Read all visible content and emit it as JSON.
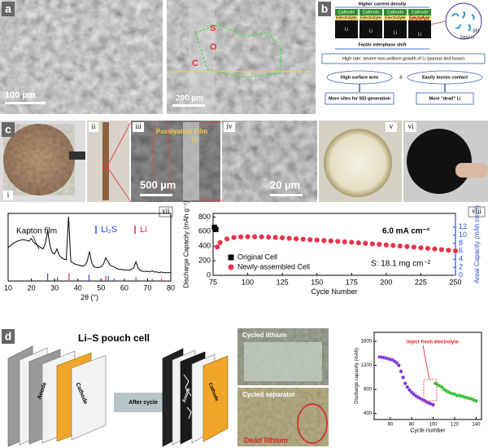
{
  "panels": {
    "a": {
      "label": "a",
      "scale_bars": [
        "100 µm",
        "200 µm"
      ],
      "markers": [
        "S",
        "O",
        "C"
      ]
    },
    "b": {
      "label": "b",
      "title": "Higher current density",
      "layers": [
        "Cathode",
        "Electrolyte",
        "Li"
      ],
      "shift": "Faster interphase shift",
      "result": "High rate: severe non-uniform growth of Li (porous and loose)",
      "causes": [
        "High surface area",
        "&",
        "Easily looses contact"
      ],
      "effects": [
        "More sites for SEI generation",
        "More \"dead\" Li"
      ],
      "inset": [
        "SEI",
        "Dead Li"
      ]
    },
    "c": {
      "label": "c",
      "subpanels": [
        "i",
        "ii",
        "iii",
        "iv",
        "v",
        "vi",
        "vii",
        "viii"
      ],
      "film": "Passivation Film",
      "li": "Li",
      "scale_bars": [
        "500 µm",
        "20 µm"
      ]
    },
    "d": {
      "label": "d",
      "title": "Li–S pouch cell",
      "anode": "Anode",
      "cathode": "Cathode",
      "arrow": "After cycle",
      "photos": [
        "Cycled lithium",
        "Cycled separator"
      ],
      "dead": "Dead lithium"
    }
  },
  "chart_data": [
    {
      "type": "line",
      "color": "#000000",
      "x": [
        10,
        11,
        12,
        13,
        14,
        15,
        16,
        17,
        18,
        19,
        20,
        21,
        22,
        23,
        24,
        25,
        26,
        27,
        28,
        29,
        30,
        31,
        32,
        33,
        34,
        35,
        36,
        37,
        38,
        39,
        40,
        41,
        42,
        43,
        44,
        45,
        46,
        47,
        48,
        49,
        50,
        51,
        52,
        53,
        54,
        55,
        56,
        57,
        58,
        59,
        60,
        61,
        62,
        63,
        64,
        65,
        66,
        67,
        68,
        69,
        70,
        71,
        72,
        73,
        74,
        75,
        76,
        77,
        78,
        79,
        80
      ],
      "values": [
        52,
        55,
        58,
        60,
        62,
        63,
        64,
        64,
        63,
        62,
        66,
        60,
        57,
        55,
        52,
        50,
        58,
        78,
        55,
        44,
        42,
        50,
        40,
        36,
        34,
        33,
        100,
        30,
        28,
        26,
        25,
        24,
        23,
        24,
        30,
        46,
        28,
        22,
        21,
        21,
        22,
        26,
        36,
        30,
        24,
        23,
        21,
        19,
        18,
        18,
        17,
        17,
        17,
        18,
        20,
        30,
        20,
        16,
        15,
        15,
        15,
        14,
        16,
        14,
        14,
        13,
        14,
        13,
        13,
        13,
        13
      ],
      "xlim": [
        10,
        80
      ],
      "xticks": [
        10,
        20,
        30,
        40,
        50,
        60,
        70,
        80
      ],
      "ylim": [
        0,
        105
      ],
      "xlabel": "2θ (°)",
      "annotations": [
        "Kapton film"
      ],
      "legend": "upper right",
      "references": [
        {
          "name": "Li₂S",
          "color": "#2a4fd6",
          "x": [
            27,
            31.2,
            44.8,
            53.1,
            55.6,
            65,
            72
          ],
          "values": [
            12,
            6,
            10,
            8,
            4,
            3,
            3
          ]
        },
        {
          "name": "Li",
          "color": "#e0284a",
          "x": [
            36.2,
            52,
            65,
            76
          ],
          "values": [
            12,
            8,
            6,
            4
          ]
        }
      ]
    },
    {
      "type": "scatter",
      "series": [
        {
          "name": "Original Cell",
          "color": "#000000",
          "marker": "square",
          "x": [
            76,
            77
          ],
          "values": [
            660,
            630
          ]
        },
        {
          "name": "Newly-assembled Cell",
          "color": "#e8334a",
          "marker": "circle",
          "x": [
            78,
            80,
            85,
            90,
            95,
            100,
            105,
            110,
            115,
            120,
            125,
            130,
            135,
            140,
            145,
            150,
            155,
            160,
            165,
            170,
            175,
            180,
            185,
            190,
            195,
            200,
            205,
            210,
            215,
            220,
            225,
            230,
            235,
            240,
            245,
            250
          ],
          "values": [
            390,
            450,
            500,
            520,
            528,
            530,
            530,
            528,
            525,
            520,
            515,
            508,
            502,
            496,
            490,
            484,
            478,
            472,
            466,
            460,
            454,
            446,
            440,
            432,
            425,
            417,
            410,
            402,
            395,
            387,
            378,
            370,
            362,
            353,
            345,
            335
          ]
        }
      ],
      "xlim": [
        75,
        250
      ],
      "xticks": [
        75,
        100,
        125,
        150,
        175,
        200,
        225,
        250
      ],
      "ylim": [
        0,
        850
      ],
      "yticks": [
        0,
        200,
        400,
        600,
        800
      ],
      "y2lim": [
        0,
        15.385
      ],
      "y2ticks": [
        0,
        2,
        4,
        6,
        8,
        10,
        12
      ],
      "xlabel": "Cycle Number",
      "ylabel": "Discharge Capacity (mAh g⁻¹)",
      "y2label": "Areal Capacity (mAh cm⁻²)",
      "annotations": [
        "6.0 mA cm⁻²",
        "S: 18.1 mg cm⁻²"
      ],
      "legend": "lower left"
    },
    {
      "type": "scatter",
      "series": [
        {
          "color": "#7b2fd6",
          "marker": "circle",
          "x": [
            50,
            52,
            54,
            56,
            58,
            60,
            62,
            64,
            66,
            68,
            70,
            72,
            74,
            76,
            78,
            80,
            82,
            84,
            86,
            88,
            90,
            92,
            94,
            96,
            98,
            100
          ],
          "values": [
            1340,
            1335,
            1330,
            1320,
            1310,
            1300,
            1290,
            1270,
            1240,
            1200,
            1100,
            1000,
            900,
            840,
            790,
            750,
            720,
            690,
            670,
            650,
            630,
            610,
            590,
            575,
            560,
            545
          ]
        },
        {
          "color": "#2fbf2f",
          "marker": "circle",
          "x": [
            102,
            104,
            106,
            108,
            110,
            112,
            114,
            116,
            118,
            120,
            122,
            124,
            126,
            128,
            130,
            132,
            134,
            136,
            138,
            140
          ],
          "values": [
            900,
            880,
            860,
            840,
            800,
            780,
            760,
            740,
            730,
            720,
            700,
            700,
            690,
            680,
            670,
            660,
            650,
            640,
            620,
            610
          ]
        }
      ],
      "xlim": [
        45,
        145
      ],
      "xticks": [
        60,
        80,
        100,
        120,
        140
      ],
      "ylim": [
        300,
        1750
      ],
      "yticks": [
        400,
        800,
        1200,
        1600
      ],
      "xlabel": "Cycle number",
      "ylabel": "Discharge capacity (mAh)",
      "annotations": [
        "Inject fresh electrolyte"
      ]
    }
  ]
}
